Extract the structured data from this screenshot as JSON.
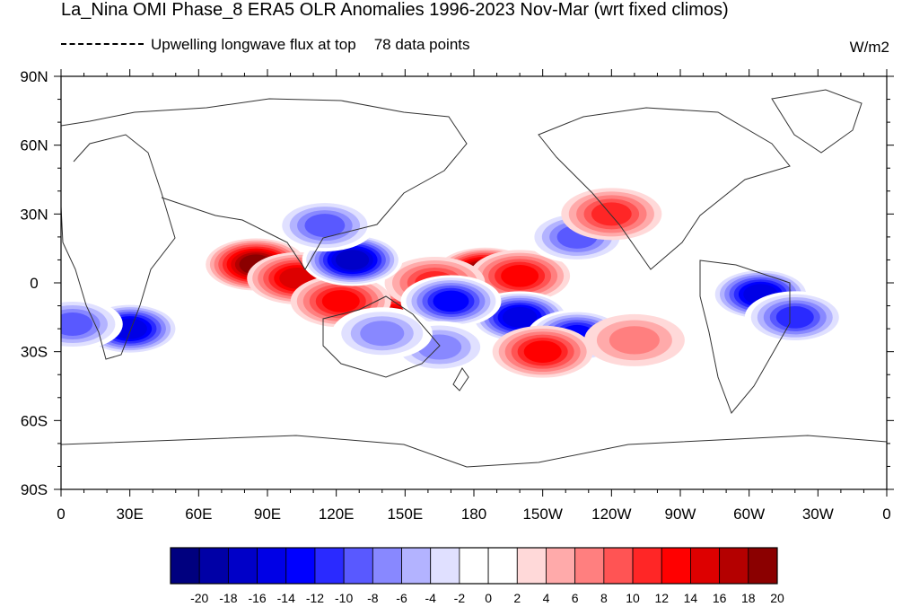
{
  "title": "La_Nina OMI Phase_8 ERA5 OLR Anomalies 1996-2023 Nov-Mar (wrt fixed climos)",
  "legend_text": "Upwelling longwave flux at top",
  "data_points_text": "78 data points",
  "units": "W/m2",
  "map": {
    "lon_ticks": [
      "0",
      "30E",
      "60E",
      "90E",
      "120E",
      "150E",
      "180",
      "150W",
      "120W",
      "90W",
      "60W",
      "30W",
      "0"
    ],
    "lat_ticks": [
      "90N",
      "60N",
      "30N",
      "0",
      "30S",
      "60S",
      "90S"
    ],
    "lon_range": [
      0,
      360
    ],
    "lat_range": [
      -90,
      90
    ],
    "projection": "cylindrical-equidistant",
    "center_longitude": 180
  },
  "colorbar": {
    "labels": [
      "-20",
      "-18",
      "-16",
      "-14",
      "-12",
      "-10",
      "-8",
      "-6",
      "-4",
      "-2",
      "0",
      "2",
      "4",
      "6",
      "8",
      "10",
      "12",
      "14",
      "16",
      "18",
      "20"
    ],
    "colors": [
      "#00007f",
      "#0000a6",
      "#0000c8",
      "#0000e6",
      "#0000ff",
      "#2a2aff",
      "#5959ff",
      "#8888ff",
      "#b3b3ff",
      "#e0e0ff",
      "#ffffff",
      "#ffffff",
      "#ffd9d9",
      "#ffaaaa",
      "#ff7f7f",
      "#ff5454",
      "#ff2626",
      "#ff0000",
      "#dd0000",
      "#b40000",
      "#8b0000"
    ]
  },
  "anomalies": [
    {
      "lon": 85,
      "lat": 8,
      "value": 18
    },
    {
      "lon": 103,
      "lat": 2,
      "value": 14
    },
    {
      "lon": 145,
      "lat": -15,
      "value": 14
    },
    {
      "lon": 122,
      "lat": -8,
      "value": 12
    },
    {
      "lon": 185,
      "lat": 4,
      "value": 20
    },
    {
      "lon": 200,
      "lat": 3,
      "value": 12
    },
    {
      "lon": 163,
      "lat": 0,
      "value": 10
    },
    {
      "lon": 127,
      "lat": 10,
      "value": -18
    },
    {
      "lon": 200,
      "lat": -15,
      "value": -16
    },
    {
      "lon": 170,
      "lat": -8,
      "value": -14
    },
    {
      "lon": 225,
      "lat": -23,
      "value": -14
    },
    {
      "lon": 165,
      "lat": -28,
      "value": -8
    },
    {
      "lon": 30,
      "lat": -20,
      "value": -16
    },
    {
      "lon": 5,
      "lat": -18,
      "value": -10
    },
    {
      "lon": 305,
      "lat": -5,
      "value": -16
    },
    {
      "lon": 320,
      "lat": -15,
      "value": -12
    },
    {
      "lon": 225,
      "lat": 20,
      "value": -10
    },
    {
      "lon": 240,
      "lat": 30,
      "value": 10
    },
    {
      "lon": 210,
      "lat": -30,
      "value": 12
    },
    {
      "lon": 250,
      "lat": -25,
      "value": 6
    },
    {
      "lon": 115,
      "lat": 25,
      "value": -10
    },
    {
      "lon": 140,
      "lat": -22,
      "value": -8
    }
  ]
}
